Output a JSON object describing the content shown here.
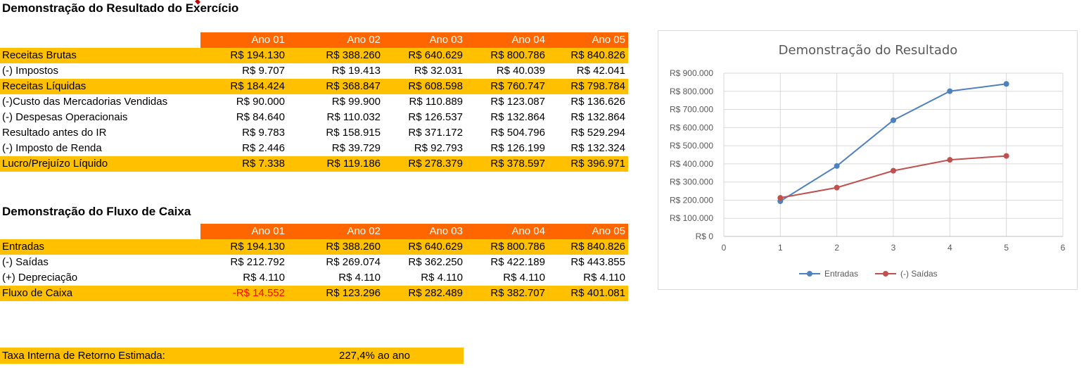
{
  "dre": {
    "title": "Demonstração do Resultado do Exercício",
    "headers": [
      "Ano 01",
      "Ano 02",
      "Ano 03",
      "Ano 04",
      "Ano 05"
    ],
    "rows": [
      {
        "label": "Receitas Brutas",
        "values": [
          "R$ 194.130",
          "R$ 388.260",
          "R$ 640.629",
          "R$ 800.786",
          "R$ 840.826"
        ]
      },
      {
        "label": "(-) Impostos",
        "values": [
          "R$ 9.707",
          "R$ 19.413",
          "R$ 32.031",
          "R$ 40.039",
          "R$ 42.041"
        ]
      },
      {
        "label": "Receitas Líquidas",
        "values": [
          "R$ 184.424",
          "R$ 368.847",
          "R$ 608.598",
          "R$ 760.747",
          "R$ 798.784"
        ]
      },
      {
        "label": "(-)Custo das Mercadorias Vendidas",
        "values": [
          "R$ 90.000",
          "R$ 99.900",
          "R$ 110.889",
          "R$ 123.087",
          "R$ 136.626"
        ]
      },
      {
        "label": "(-) Despesas Operacionais",
        "values": [
          "R$ 84.640",
          "R$ 110.032",
          "R$ 126.537",
          "R$ 132.864",
          "R$ 132.864"
        ]
      },
      {
        "label": "Resultado antes do IR",
        "values": [
          "R$ 9.783",
          "R$ 158.915",
          "R$ 371.172",
          "R$ 504.796",
          "R$ 529.294"
        ]
      },
      {
        "label": "(-) Imposto de Renda",
        "values": [
          "R$ 2.446",
          "R$ 39.729",
          "R$ 92.793",
          "R$ 126.199",
          "R$ 132.324"
        ]
      },
      {
        "label": "Lucro/Prejuízo Líquido",
        "values": [
          "R$ 7.338",
          "R$ 119.186",
          "R$ 278.379",
          "R$ 378.597",
          "R$ 396.971"
        ]
      }
    ]
  },
  "dfc": {
    "title": "Demonstração do Fluxo de Caixa",
    "headers": [
      "Ano 01",
      "Ano 02",
      "Ano 03",
      "Ano 04",
      "Ano 05"
    ],
    "rows": [
      {
        "label": "Entradas",
        "values": [
          "R$ 194.130",
          "R$ 388.260",
          "R$ 640.629",
          "R$ 800.786",
          "R$ 840.826"
        ]
      },
      {
        "label": "(-) Saídas",
        "values": [
          "R$ 212.792",
          "R$ 269.074",
          "R$ 362.250",
          "R$ 422.189",
          "R$ 443.855"
        ]
      },
      {
        "label": "(+) Depreciação",
        "values": [
          "R$ 4.110",
          "R$ 4.110",
          "R$ 4.110",
          "R$ 4.110",
          "R$ 4.110"
        ]
      },
      {
        "label": "Fluxo de Caixa",
        "values": [
          "-R$ 14.552",
          "R$ 123.296",
          "R$ 282.489",
          "R$ 382.707",
          "R$ 401.081"
        ]
      }
    ]
  },
  "tir": {
    "label": "Taxa Interna de Retorno Estimada:",
    "value": "227,4%  ao ano"
  },
  "colors": {
    "header": "#ff6600",
    "highlight": "#ffc000",
    "negative": "#ff0000",
    "entradas": "#4f81bd",
    "saidas": "#c0504d"
  },
  "chart_data": {
    "type": "scatter",
    "title": "Demonstração do Resultado",
    "x": [
      1,
      2,
      3,
      4,
      5
    ],
    "xlim": [
      0,
      6
    ],
    "x_ticks": [
      "0",
      "1",
      "2",
      "3",
      "4",
      "5",
      "6"
    ],
    "ylim": [
      0,
      900000
    ],
    "y_ticks": [
      "R$ 0",
      "R$ 100.000",
      "R$ 200.000",
      "R$ 300.000",
      "R$ 400.000",
      "R$ 500.000",
      "R$ 600.000",
      "R$ 700.000",
      "R$ 800.000",
      "R$ 900.000"
    ],
    "grid": true,
    "legend": "bottom",
    "series": [
      {
        "name": "Entradas",
        "values": [
          194130,
          388260,
          640629,
          800786,
          840826
        ]
      },
      {
        "name": "(-) Saídas",
        "values": [
          212792,
          269074,
          362250,
          422189,
          443855
        ]
      }
    ]
  }
}
